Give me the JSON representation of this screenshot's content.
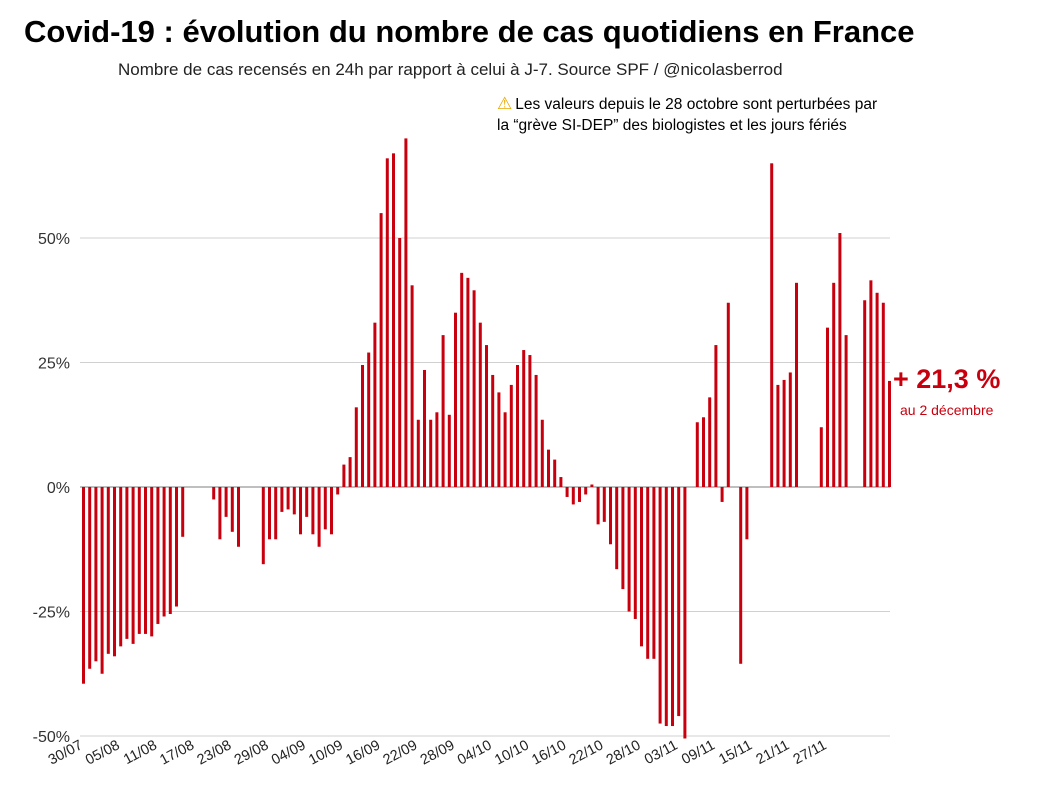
{
  "colors": {
    "bar": "#c8000e",
    "grid": "#d0d0d0",
    "zero": "#999999",
    "callout": "#c8000e"
  },
  "warning": {
    "icon": "warning-icon",
    "line1": "Les valeurs depuis le 28 octobre sont perturbées par",
    "line2": "la “grève SI-DEP” des biologistes et les jours fériés"
  },
  "callout": {
    "value": "+ 21,3 %",
    "date": "au 2 décembre"
  },
  "chart_data": {
    "type": "bar",
    "title": "Covid-19 : évolution du nombre de cas quotidiens en France",
    "subtitle": "Nombre de cas recensés en 24h par rapport à celui à J-7. Source SPF / @nicolasberrod",
    "xlabel": "",
    "ylabel": "",
    "ylim": [
      -50,
      70
    ],
    "yticks": [
      50,
      25,
      0,
      -25,
      -50
    ],
    "ytick_labels": [
      "50%",
      "25%",
      "0%",
      "-25%",
      "-50%"
    ],
    "start_date": "30/07",
    "xtick_labels": [
      "30/07",
      "05/08",
      "11/08",
      "17/08",
      "23/08",
      "29/08",
      "04/09",
      "10/09",
      "16/09",
      "22/09",
      "28/09",
      "04/10",
      "10/10",
      "16/10",
      "22/10",
      "28/10",
      "03/11",
      "09/11",
      "15/11",
      "21/11",
      "27/11"
    ],
    "values": [
      -39.5,
      -36.5,
      -35,
      -37.5,
      -33.5,
      -34,
      -32,
      -30.5,
      -31.5,
      -29.5,
      -29.5,
      -30,
      -27.5,
      -26,
      -25.5,
      -24,
      -10,
      null,
      null,
      null,
      null,
      -2.5,
      -10.5,
      -6,
      -9,
      -12,
      null,
      null,
      null,
      -15.5,
      -10.5,
      -10.5,
      -5,
      -4.5,
      -5.5,
      -9.5,
      -6,
      -9.5,
      -12,
      -8.5,
      -9.5,
      -1.5,
      4.5,
      6,
      16,
      24.5,
      27,
      33,
      55,
      66,
      67,
      50,
      70,
      40.5,
      13.5,
      23.5,
      13.5,
      15,
      30.5,
      14.5,
      35,
      43,
      42,
      39.5,
      33,
      28.5,
      22.5,
      19,
      15,
      20.5,
      24.5,
      27.5,
      26.5,
      22.5,
      13.5,
      7.5,
      5.5,
      2,
      -2,
      -3.5,
      -3,
      -1.5,
      0.5,
      -7.5,
      -7,
      -11.5,
      -16.5,
      -20.5,
      -25,
      -26.5,
      -32,
      -34.5,
      -34.5,
      -47.5,
      -48,
      -48,
      -46,
      -50.5,
      null,
      13,
      14,
      18,
      28.5,
      -3,
      37,
      null,
      -35.5,
      -10.5,
      null,
      null,
      null,
      65,
      20.5,
      21.5,
      23,
      41,
      null,
      null,
      null,
      12,
      32,
      41,
      51,
      30.5,
      null,
      null,
      37.5,
      41.5,
      39,
      37,
      21.3
    ]
  }
}
